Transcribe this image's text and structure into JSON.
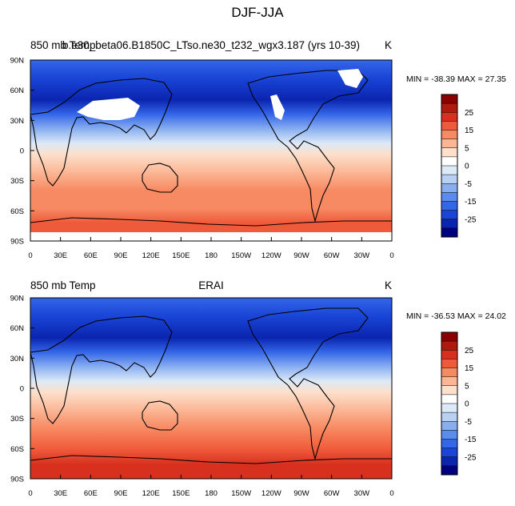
{
  "figure": {
    "title": "DJF-JJA"
  },
  "panels": [
    {
      "left_label": "850 mb Temp",
      "center_label": "b.e30_beta06.B1850C_LTso.ne30_t232_wgx3.187 (yrs 10-39)",
      "right_label": "K",
      "stats": "MIN = -38.39 MAX =  27.35",
      "y_ticks": [
        "90N",
        "60N",
        "30N",
        "0",
        "30S",
        "60S",
        "90S"
      ],
      "x_ticks": [
        "0",
        "30E",
        "60E",
        "90E",
        "120E",
        "150E",
        "180",
        "150W",
        "120W",
        "90W",
        "60W",
        "30W",
        "0"
      ],
      "has_missing_data": true
    },
    {
      "left_label": "850 mb Temp",
      "center_label": "ERAI",
      "right_label": "K",
      "stats": "MIN = -36.53 MAX =  24.02",
      "y_ticks": [
        "90N",
        "60N",
        "30N",
        "0",
        "30S",
        "60S",
        "90S"
      ],
      "x_ticks": [
        "0",
        "30E",
        "60E",
        "90E",
        "120E",
        "150E",
        "180",
        "150W",
        "120W",
        "90W",
        "60W",
        "30W",
        "0"
      ],
      "has_missing_data": false
    }
  ],
  "colorbar": {
    "tick_labels": [
      "25",
      "15",
      "5",
      "0",
      "-5",
      "-15",
      "-25"
    ],
    "colors": [
      "#8b0000",
      "#b01a0c",
      "#d7301f",
      "#ef5a3a",
      "#f78a62",
      "#fbb795",
      "#fde0cc",
      "#ffffff",
      "#dce9f7",
      "#b8d1f2",
      "#88aef0",
      "#5b8bef",
      "#3466e8",
      "#1a45d6",
      "#0a25b0",
      "#000080"
    ]
  }
}
